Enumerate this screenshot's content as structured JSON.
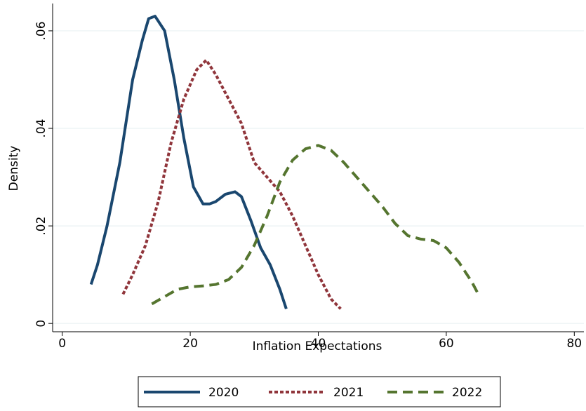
{
  "chart_data": {
    "type": "line",
    "x_label": "Inflation Expectations",
    "y_label": "Density",
    "xlim": [
      -1.5,
      81.5
    ],
    "ylim": [
      -0.0017,
      0.0656
    ],
    "xticks": [
      0,
      20,
      40,
      60,
      80
    ],
    "yticks": [
      0,
      {
        "value": 0.02,
        "label": ".02"
      },
      {
        "value": 0.04,
        "label": ".04"
      },
      {
        "value": 0.06,
        "label": ".06"
      }
    ],
    "grid": true,
    "legend": "bottom",
    "series": [
      {
        "name": "2020",
        "color": "#1a476f",
        "line_style": "solid",
        "x": [
          4.5,
          5.5,
          7,
          9,
          11,
          12.5,
          13.5,
          14.5,
          16,
          17.5,
          19,
          20.5,
          22,
          23,
          24,
          25.5,
          27,
          28,
          29.5,
          31,
          32.5,
          34,
          35
        ],
        "values": [
          0.008,
          0.012,
          0.02,
          0.033,
          0.05,
          0.058,
          0.0625,
          0.063,
          0.06,
          0.05,
          0.038,
          0.028,
          0.0245,
          0.0245,
          0.025,
          0.0265,
          0.027,
          0.026,
          0.021,
          0.0155,
          0.012,
          0.007,
          0.003
        ]
      },
      {
        "name": "2021",
        "color": "#90353b",
        "line_style": "dash",
        "x": [
          9.5,
          11,
          13,
          15,
          17,
          19,
          21,
          22.5,
          24,
          26,
          28,
          30,
          32,
          34,
          36,
          38,
          40,
          42,
          43.5
        ],
        "values": [
          0.006,
          0.01,
          0.016,
          0.025,
          0.037,
          0.046,
          0.052,
          0.054,
          0.051,
          0.046,
          0.041,
          0.033,
          0.03,
          0.027,
          0.022,
          0.016,
          0.01,
          0.005,
          0.003
        ]
      },
      {
        "name": "2022",
        "color": "#55752f",
        "line_style": "longdash",
        "x": [
          14,
          16,
          18,
          20,
          22,
          24,
          26,
          28,
          30,
          32,
          34,
          36,
          38,
          40,
          42,
          44,
          46,
          48,
          50,
          52,
          54,
          56,
          58,
          60,
          62,
          64,
          65
        ],
        "values": [
          0.004,
          0.0055,
          0.007,
          0.0075,
          0.0077,
          0.008,
          0.009,
          0.0115,
          0.016,
          0.022,
          0.029,
          0.0335,
          0.0358,
          0.0365,
          0.0355,
          0.033,
          0.03,
          0.027,
          0.024,
          0.0205,
          0.018,
          0.0173,
          0.017,
          0.0155,
          0.0125,
          0.0085,
          0.006
        ]
      }
    ]
  }
}
